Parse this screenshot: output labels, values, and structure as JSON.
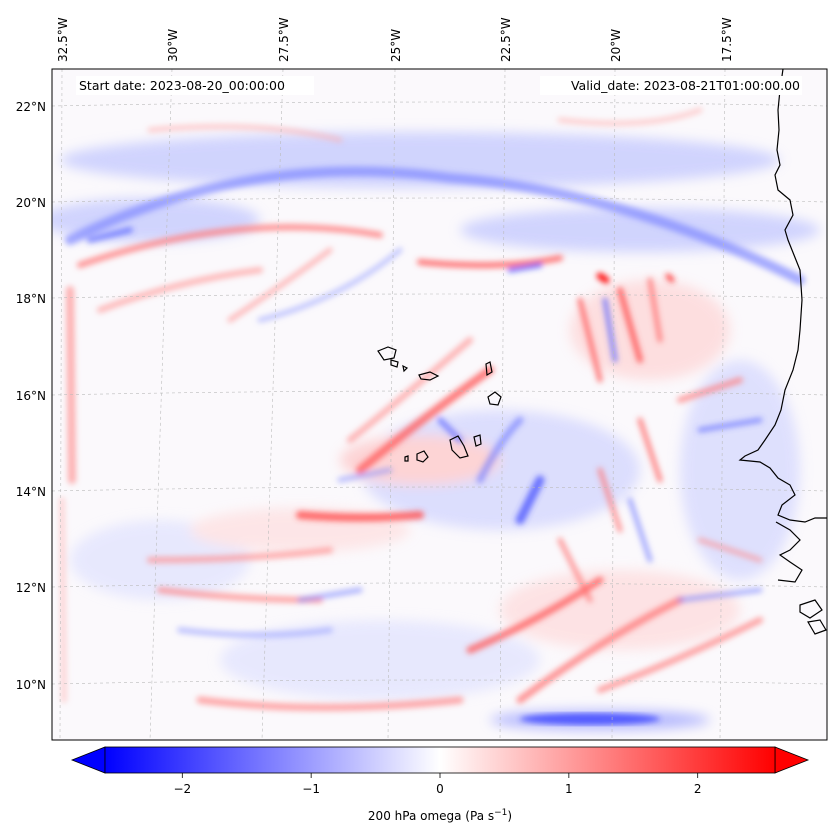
{
  "annotations": {
    "start_date": "Start date: 2023-08-20_00:00:00",
    "valid_date": "Valid_date: 2023-08-21T01:00:00.00"
  },
  "axes": {
    "lon_ticks": [
      "32.5°W",
      "30°W",
      "27.5°W",
      "25°W",
      "22.5°W",
      "20°W",
      "17.5°W"
    ],
    "lat_ticks": [
      "22°N",
      "20°N",
      "18°N",
      "16°N",
      "14°N",
      "12°N",
      "10°N"
    ]
  },
  "colorbar": {
    "label_prefix": "200 hPa omega (Pa s",
    "label_exp": "−1",
    "label_suffix": ")",
    "ticks": [
      "−2",
      "−1",
      "0",
      "1",
      "2"
    ],
    "tick_values": [
      -2,
      -1,
      0,
      1,
      2
    ],
    "range": [
      -2.6,
      2.6
    ],
    "colors": {
      "negative": "#0000ff",
      "zero": "#ffffff",
      "positive": "#ff0000"
    },
    "extend": "both"
  },
  "map": {
    "projection": "lambert-conformal",
    "region": "Cape Verde / West Africa coast",
    "gridlines": true,
    "colormap": "bwr",
    "field": "200 hPa omega"
  }
}
